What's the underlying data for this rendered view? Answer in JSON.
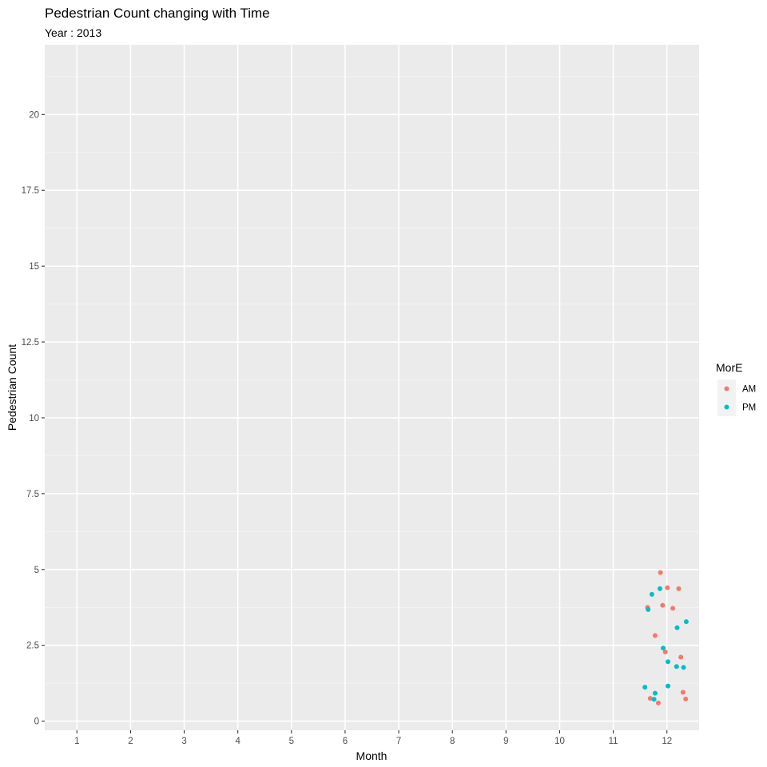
{
  "chart_data": {
    "type": "scatter",
    "title": "Pedestrian Count changing with Time",
    "subtitle": "Year : 2013",
    "xlabel": "Month",
    "ylabel": "Pedestrian Count",
    "xlim": [
      0.4,
      12.6
    ],
    "ylim": [
      -0.3,
      22.3
    ],
    "x_ticks": [
      1,
      2,
      3,
      4,
      5,
      6,
      7,
      8,
      9,
      10,
      11,
      12
    ],
    "x_tick_labels": [
      "1",
      "2",
      "3",
      "4",
      "5",
      "6",
      "7",
      "8",
      "9",
      "10",
      "11",
      "12"
    ],
    "y_ticks": [
      0,
      2.5,
      5,
      7.5,
      10,
      12.5,
      15,
      17.5,
      20
    ],
    "y_tick_labels": [
      "0",
      "2.5",
      "5",
      "7.5",
      "10",
      "12.5",
      "15",
      "17.5",
      "20"
    ],
    "grid": true,
    "legend": {
      "title": "MorE",
      "position": "right"
    },
    "series": [
      {
        "name": "AM",
        "color": "#F8766D",
        "points": [
          {
            "x": 11.64,
            "y": 3.75
          },
          {
            "x": 11.69,
            "y": 0.75
          },
          {
            "x": 11.78,
            "y": 2.82
          },
          {
            "x": 11.84,
            "y": 0.6
          },
          {
            "x": 11.88,
            "y": 4.9
          },
          {
            "x": 11.92,
            "y": 3.82
          },
          {
            "x": 11.97,
            "y": 2.28
          },
          {
            "x": 12.01,
            "y": 4.4
          },
          {
            "x": 12.11,
            "y": 3.72
          },
          {
            "x": 12.22,
            "y": 4.37
          },
          {
            "x": 12.26,
            "y": 2.11
          },
          {
            "x": 12.3,
            "y": 0.95
          },
          {
            "x": 12.35,
            "y": 0.73
          }
        ]
      },
      {
        "name": "PM",
        "color": "#00BFC4",
        "points": [
          {
            "x": 11.59,
            "y": 1.12
          },
          {
            "x": 11.65,
            "y": 3.68
          },
          {
            "x": 11.72,
            "y": 4.18
          },
          {
            "x": 11.76,
            "y": 0.72
          },
          {
            "x": 11.78,
            "y": 0.92
          },
          {
            "x": 11.87,
            "y": 4.37
          },
          {
            "x": 11.93,
            "y": 2.41
          },
          {
            "x": 12.02,
            "y": 1.96
          },
          {
            "x": 12.02,
            "y": 1.16
          },
          {
            "x": 12.18,
            "y": 1.8
          },
          {
            "x": 12.19,
            "y": 3.08
          },
          {
            "x": 12.31,
            "y": 1.77
          },
          {
            "x": 12.36,
            "y": 3.28
          }
        ]
      }
    ]
  }
}
